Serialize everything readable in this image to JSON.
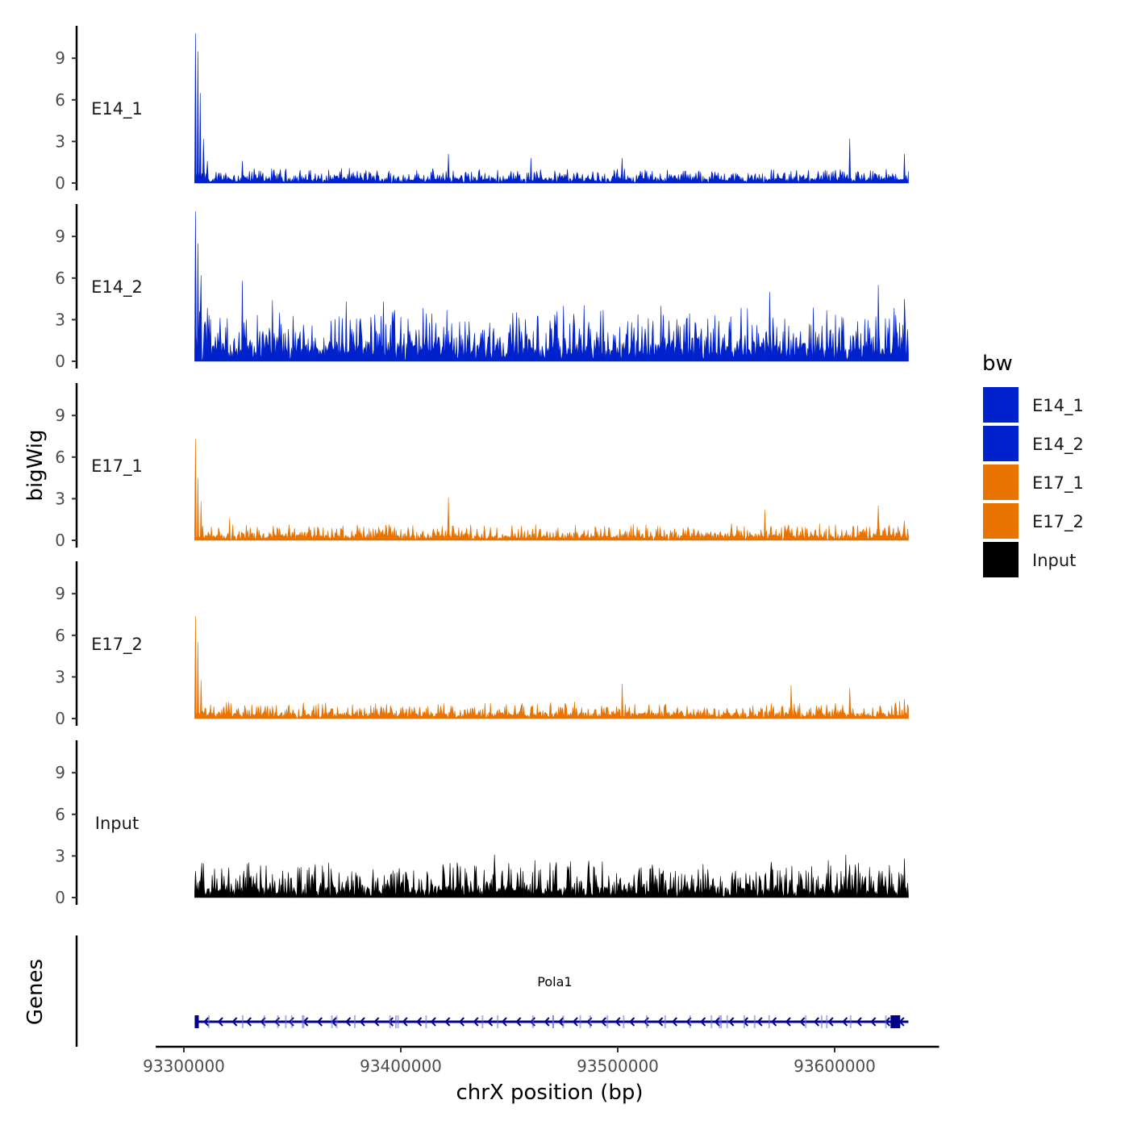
{
  "chart_data": {
    "type": "area",
    "ylabel": "bigWig",
    "genes_label": "Genes",
    "xlabel": "chrX position (bp)",
    "xlim": [
      93290000,
      93650000
    ],
    "ylim": [
      0,
      11.5
    ],
    "x_ticks": [
      93300000,
      93400000,
      93500000,
      93600000
    ],
    "x_tick_labels": [
      "93300000",
      "93400000",
      "93500000",
      "93600000"
    ],
    "y_ticks": [
      0,
      3,
      6,
      9
    ],
    "y_tick_labels": [
      "0",
      "3",
      "6",
      "9"
    ],
    "data_range": [
      93305000,
      93634000
    ],
    "legend": {
      "title": "bw",
      "entries": [
        {
          "label": "E14_1",
          "color": "#0022CC"
        },
        {
          "label": "E14_2",
          "color": "#0022CC"
        },
        {
          "label": "E17_1",
          "color": "#E87300"
        },
        {
          "label": "E17_2",
          "color": "#E87300"
        },
        {
          "label": "Input",
          "color": "#000000"
        }
      ]
    },
    "tracks": [
      {
        "name": "E14_1",
        "color": "#0022CC",
        "baseline": 0.3,
        "noise": 0.5,
        "peaks": [
          {
            "x": 93305500,
            "y": 10.8
          },
          {
            "x": 93306500,
            "y": 9.5
          },
          {
            "x": 93307500,
            "y": 6.5
          },
          {
            "x": 93309000,
            "y": 3.2
          },
          {
            "x": 93311000,
            "y": 1.6
          },
          {
            "x": 93327000,
            "y": 1.6
          },
          {
            "x": 93422000,
            "y": 2.1
          },
          {
            "x": 93460000,
            "y": 1.8
          },
          {
            "x": 93502000,
            "y": 1.8
          },
          {
            "x": 93607000,
            "y": 3.2
          },
          {
            "x": 93632000,
            "y": 2.1
          }
        ]
      },
      {
        "name": "E14_2",
        "color": "#0022CC",
        "baseline": 1.1,
        "noise": 1.8,
        "peaks": [
          {
            "x": 93305500,
            "y": 10.8
          },
          {
            "x": 93306500,
            "y": 8.5
          },
          {
            "x": 93308000,
            "y": 6.2
          },
          {
            "x": 93327000,
            "y": 5.8
          },
          {
            "x": 93341000,
            "y": 4.4
          },
          {
            "x": 93375000,
            "y": 4.3
          },
          {
            "x": 93392000,
            "y": 4.3
          },
          {
            "x": 93475000,
            "y": 4.0
          },
          {
            "x": 93520000,
            "y": 4.0
          },
          {
            "x": 93570000,
            "y": 5.0
          },
          {
            "x": 93620000,
            "y": 5.5
          },
          {
            "x": 93632000,
            "y": 4.5
          }
        ]
      },
      {
        "name": "E17_1",
        "color": "#E87300",
        "baseline": 0.35,
        "noise": 0.55,
        "peaks": [
          {
            "x": 93305500,
            "y": 7.3
          },
          {
            "x": 93306500,
            "y": 4.5
          },
          {
            "x": 93308000,
            "y": 2.8
          },
          {
            "x": 93321000,
            "y": 1.6
          },
          {
            "x": 93422000,
            "y": 3.1
          },
          {
            "x": 93568000,
            "y": 2.2
          },
          {
            "x": 93620000,
            "y": 2.5
          },
          {
            "x": 93632000,
            "y": 1.4
          }
        ]
      },
      {
        "name": "E17_2",
        "color": "#E87300",
        "baseline": 0.35,
        "noise": 0.55,
        "peaks": [
          {
            "x": 93305500,
            "y": 7.4
          },
          {
            "x": 93306500,
            "y": 5.5
          },
          {
            "x": 93308000,
            "y": 2.8
          },
          {
            "x": 93502000,
            "y": 2.5
          },
          {
            "x": 93580000,
            "y": 2.4
          },
          {
            "x": 93607000,
            "y": 2.2
          },
          {
            "x": 93632000,
            "y": 1.4
          }
        ]
      },
      {
        "name": "Input",
        "color": "#000000",
        "baseline": 0.6,
        "noise": 1.3,
        "peaks": [
          {
            "x": 93443000,
            "y": 3.1
          },
          {
            "x": 93462000,
            "y": 2.7
          },
          {
            "x": 93493000,
            "y": 2.6
          },
          {
            "x": 93605000,
            "y": 3.1
          },
          {
            "x": 93597000,
            "y": 2.7
          },
          {
            "x": 93632000,
            "y": 2.8
          }
        ]
      }
    ],
    "gene": {
      "name": "Pola1",
      "start": 93305000,
      "end": 93634000,
      "strand": "-",
      "color": "#00008B",
      "tss": 93628000
    }
  }
}
